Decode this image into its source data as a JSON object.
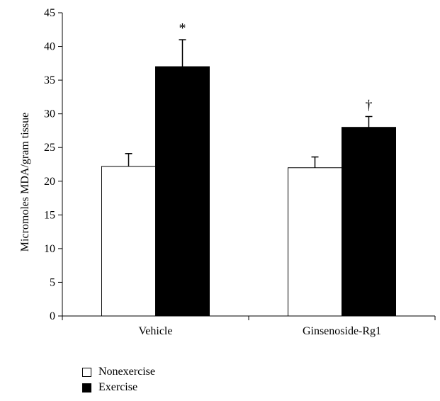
{
  "chart_data": {
    "type": "bar",
    "categories": [
      "Vehicle",
      "Ginsenoside-Rg1"
    ],
    "ylabel": "Micromoles MDA/gram tissue",
    "ylim": [
      0,
      45
    ],
    "yticks": [
      0,
      5,
      10,
      15,
      20,
      25,
      30,
      35,
      40,
      45
    ],
    "grid": false,
    "series": [
      {
        "name": "Nonexercise",
        "color": "#ffffff",
        "values": [
          22.2,
          22.0
        ],
        "errors": [
          1.9,
          1.6
        ]
      },
      {
        "name": "Exercise",
        "color": "#000000",
        "values": [
          37.0,
          28.0
        ],
        "errors": [
          4.0,
          1.6
        ]
      }
    ],
    "annotations": [
      "*",
      "†"
    ],
    "legend_position": "bottom-left"
  }
}
